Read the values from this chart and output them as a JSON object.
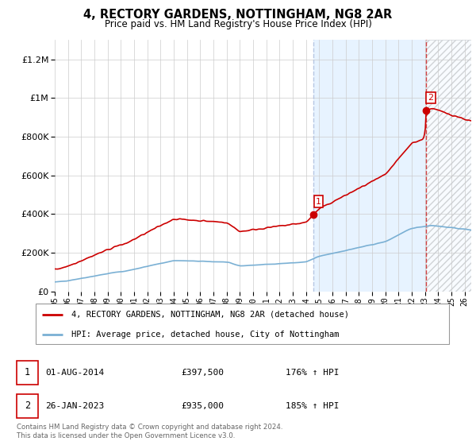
{
  "title": "4, RECTORY GARDENS, NOTTINGHAM, NG8 2AR",
  "subtitle": "Price paid vs. HM Land Registry's House Price Index (HPI)",
  "legend_line1": "4, RECTORY GARDENS, NOTTINGHAM, NG8 2AR (detached house)",
  "legend_line2": "HPI: Average price, detached house, City of Nottingham",
  "footnote": "Contains HM Land Registry data © Crown copyright and database right 2024.\nThis data is licensed under the Open Government Licence v3.0.",
  "sale1_date": "01-AUG-2014",
  "sale1_price": "£397,500",
  "sale1_hpi": "176% ↑ HPI",
  "sale2_date": "26-JAN-2023",
  "sale2_price": "£935,000",
  "sale2_hpi": "185% ↑ HPI",
  "red_color": "#cc0000",
  "blue_color": "#7ab0d4",
  "shade_color": "#ddeeff",
  "vline1_color": "#aabbdd",
  "vline2_color": "#cc0000",
  "point_color": "#cc0000",
  "ylim": [
    0,
    1300000
  ],
  "yticks": [
    0,
    200000,
    400000,
    600000,
    800000,
    1000000,
    1200000
  ],
  "xlim_start": 1995.0,
  "xlim_end": 2026.5,
  "sale1_x": 2014.58,
  "sale1_y": 397500,
  "sale2_x": 2023.07,
  "sale2_y": 935000,
  "background_color": "#ffffff",
  "grid_color": "#cccccc"
}
